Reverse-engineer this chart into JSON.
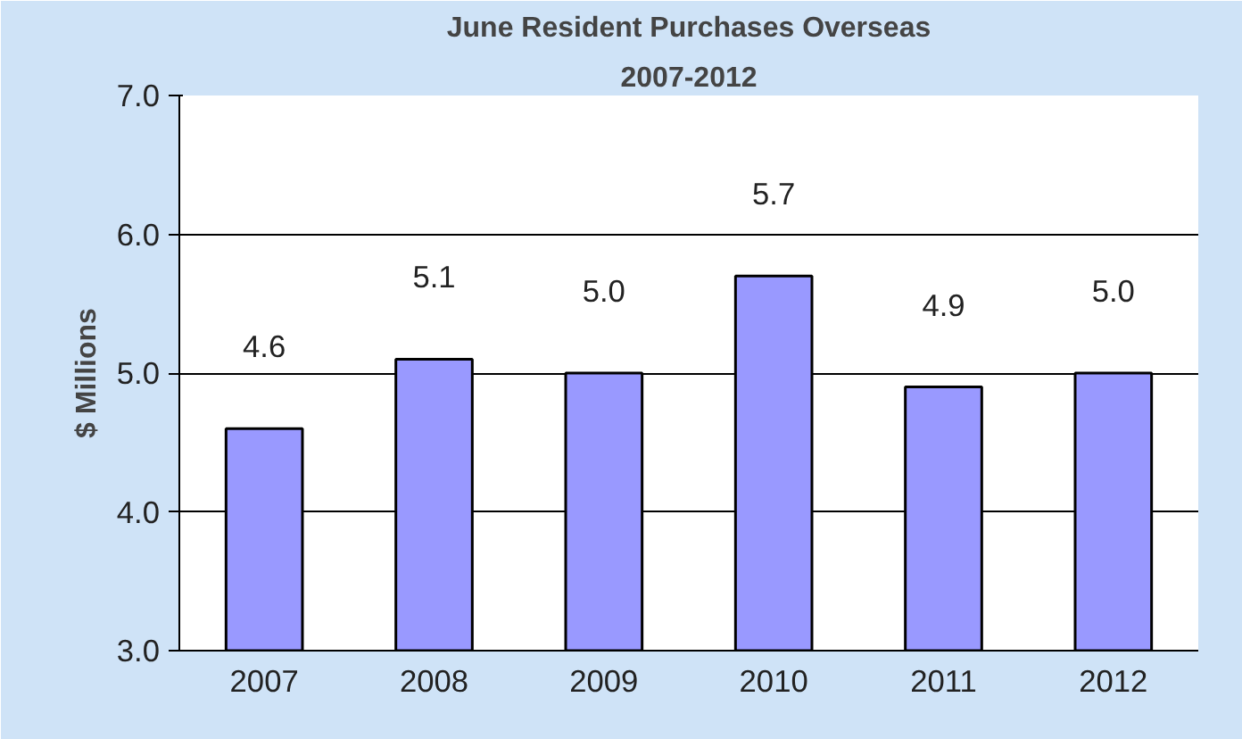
{
  "chart_data": {
    "type": "bar",
    "title": "June Resident Purchases Overseas",
    "subtitle": "2007-2012",
    "ylabel": "$ Millions",
    "categories": [
      "2007",
      "2008",
      "2009",
      "2010",
      "2011",
      "2012"
    ],
    "values": [
      4.6,
      5.1,
      5.0,
      5.7,
      4.9,
      5.0
    ],
    "value_labels": [
      "4.6",
      "5.1",
      "5.0",
      "5.7",
      "4.9",
      "5.0"
    ],
    "color": "#9999ff",
    "ylim": [
      3.0,
      7.0
    ],
    "yticks": [
      {
        "value": 3.0,
        "label": "3.0"
      },
      {
        "value": 4.0,
        "label": "4.0"
      },
      {
        "value": 5.0,
        "label": "5.0"
      },
      {
        "value": 6.0,
        "label": "6.0"
      },
      {
        "value": 7.0,
        "label": "7.0"
      }
    ],
    "grid": "y"
  }
}
